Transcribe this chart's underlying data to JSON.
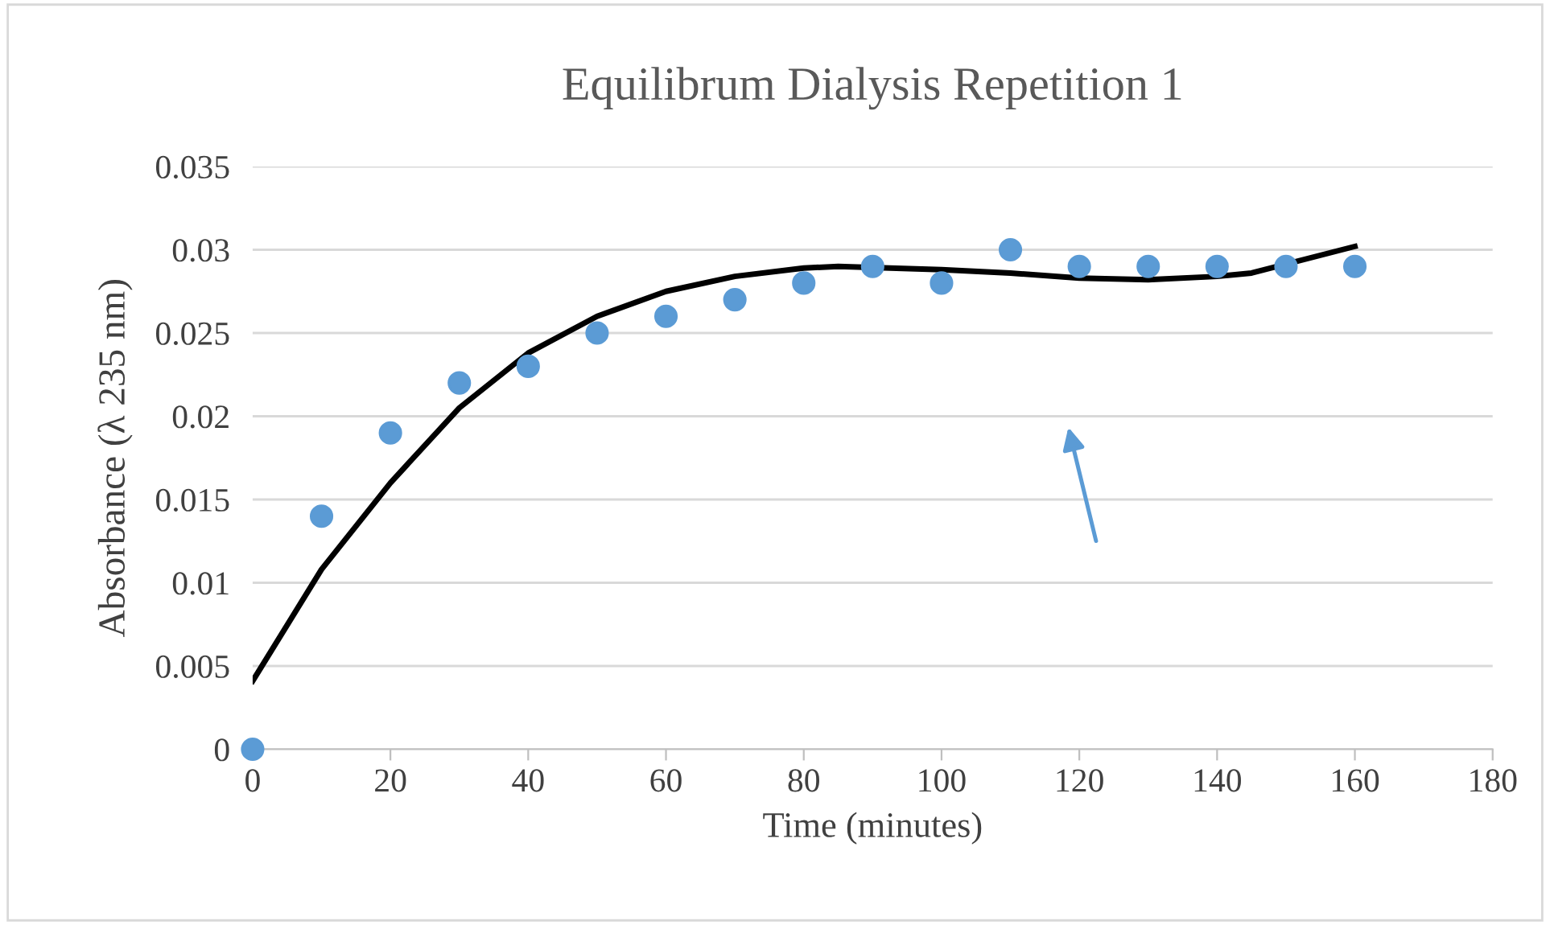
{
  "chart_data": {
    "type": "scatter",
    "title": "Equilibrum Dialysis Repetition 1",
    "xlabel": "Time (minutes)",
    "ylabel": "Absorbance (λ 235 nm)",
    "x": [
      0,
      10,
      20,
      30,
      40,
      50,
      60,
      70,
      80,
      90,
      100,
      110,
      120,
      130,
      140,
      150,
      160
    ],
    "series": [
      {
        "color": "#5b9bd5",
        "marker": "circle",
        "values": [
          0,
          0.014,
          0.019,
          0.022,
          0.023,
          0.025,
          0.026,
          0.027,
          0.028,
          0.029,
          0.028,
          0.03,
          0.029,
          0.029,
          0.029,
          0.029,
          0.029
        ]
      },
      {
        "type": "line",
        "color": "#000000",
        "line_style": "solid",
        "x": [
          0,
          10,
          20,
          30,
          40,
          50,
          60,
          70,
          80,
          85,
          100,
          110,
          120,
          130,
          140,
          145,
          160
        ],
        "values": [
          0.0041,
          0.0108,
          0.016,
          0.0205,
          0.0238,
          0.026,
          0.0275,
          0.0284,
          0.0289,
          0.029,
          0.0288,
          0.0286,
          0.0283,
          0.0282,
          0.0284,
          0.0286,
          0.0302
        ]
      }
    ],
    "xlim": [
      0,
      180
    ],
    "xticks": [
      0,
      20,
      40,
      60,
      80,
      100,
      120,
      140,
      160,
      180
    ],
    "ylim": [
      0,
      0.035
    ],
    "yticks": [
      0,
      0.005,
      0.01,
      0.015,
      0.02,
      0.025,
      0.03,
      0.035
    ],
    "grid": "y",
    "legend": false
  }
}
